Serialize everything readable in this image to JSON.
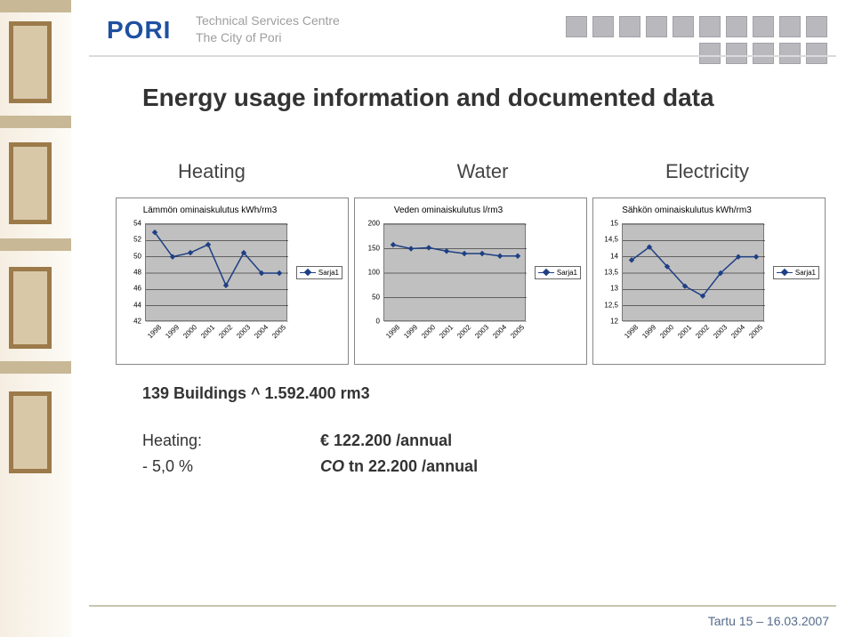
{
  "header": {
    "logo": "PORI",
    "org_line1": "Technical Services Centre",
    "org_line2": "The City of Pori",
    "square_color": "#b9b8bd"
  },
  "title": "Energy usage information and documented data",
  "subheads": {
    "heating": "Heating",
    "water": "Water",
    "electricity": "Electricity"
  },
  "charts": {
    "line_color": "#1e3f84",
    "marker_color": "#1e3f84",
    "plot_bg": "#c0c0c0",
    "frame_border": "#888888",
    "grid_color": "#000000",
    "legend_label": "Sarja1",
    "x_categories": [
      "1998",
      "1999",
      "2000",
      "2001",
      "2002",
      "2003",
      "2004",
      "2005"
    ],
    "heating": {
      "title": "Lämmön ominaiskulutus kWh/rm3",
      "ylim": [
        42,
        54
      ],
      "ytick_step": 2,
      "values": [
        53.0,
        50.0,
        50.5,
        51.5,
        46.5,
        50.5,
        48.0,
        48.0
      ]
    },
    "water": {
      "title": "Veden ominaiskulutus l/rm3",
      "ylim": [
        0,
        200
      ],
      "ytick_step": 50,
      "values": [
        158,
        150,
        152,
        145,
        140,
        140,
        135,
        135
      ]
    },
    "electricity": {
      "title": "Sähkön ominaiskulutus kWh/rm3",
      "ylim": [
        12,
        15
      ],
      "ytick_step": 0.5,
      "values": [
        13.9,
        14.3,
        13.7,
        13.1,
        12.8,
        13.5,
        14.0,
        14.0
      ]
    }
  },
  "bottom": {
    "buildings": "139 Buildings ^ 1.592.400 rm3",
    "rows": [
      {
        "label": "Heating:",
        "value": "122.200 /annual",
        "prefix": "€"
      },
      {
        "label": "- 5,0 %",
        "value": "tn 22.200 /annual",
        "prefix": "CO"
      }
    ]
  },
  "footer": "Tartu 15 – 16.03.2007"
}
